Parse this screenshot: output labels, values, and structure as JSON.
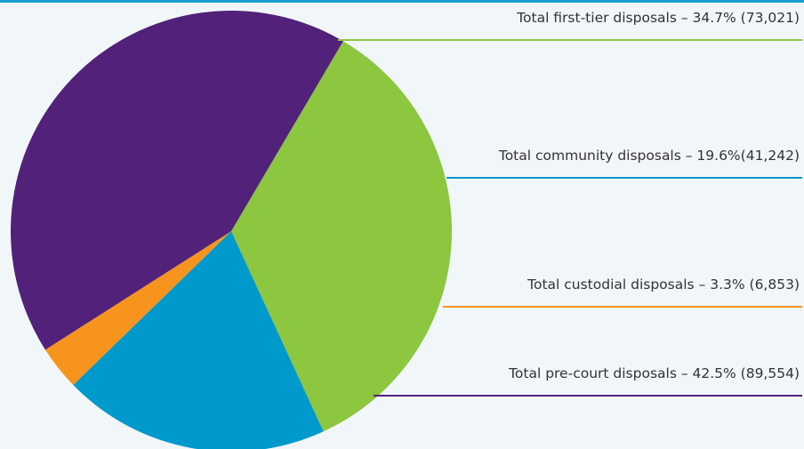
{
  "chart_data": {
    "type": "pie",
    "title": "",
    "slices": [
      {
        "label": "Total first-tier disposals – 34.7% (73,021)",
        "name": "Total first-tier disposals",
        "percent": 34.7,
        "value": 73021,
        "color": "#8dc63f"
      },
      {
        "label": "Total community disposals – 19.6%(41,242)",
        "name": "Total community disposals",
        "percent": 19.6,
        "value": 41242,
        "color": "#0099cc"
      },
      {
        "label": "Total custodial disposals – 3.3% (6,853)",
        "name": "Total custodial disposals",
        "percent": 3.3,
        "value": 6853,
        "color": "#f7941d"
      },
      {
        "label": "Total pre-court disposals – 42.5% (89,554)",
        "name": "Total pre-court disposals",
        "percent": 42.5,
        "value": 89554,
        "color": "#52217a"
      }
    ],
    "legend": "right",
    "grid": false
  },
  "colors": {
    "background": "#f1f6f9",
    "top_rule": "#1aa0cf",
    "label_text": "#333333"
  }
}
